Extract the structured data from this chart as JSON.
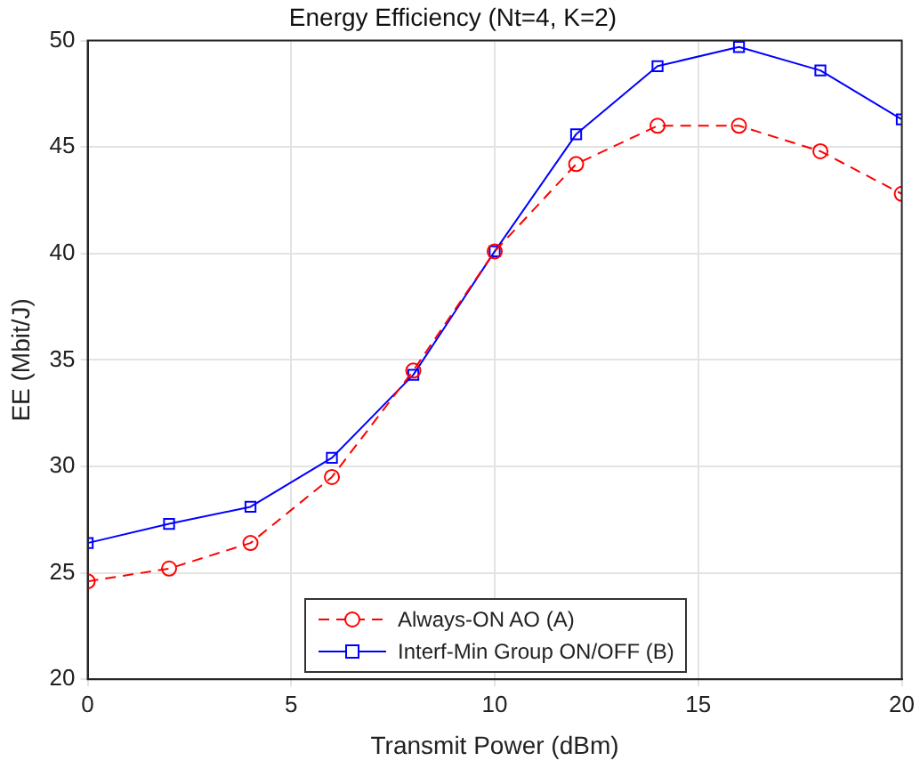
{
  "chart_data": {
    "type": "line",
    "title": "Energy Efficiency (Nt=4, K=2)",
    "xlabel": "Transmit Power (dBm)",
    "ylabel": "EE (Mbit/J)",
    "x": [
      0,
      2,
      4,
      6,
      8,
      10,
      12,
      14,
      16,
      18,
      20
    ],
    "series": [
      {
        "name": "Always-ON AO (A)",
        "color": "#ff0000",
        "marker": "circle",
        "line_style": "dashed",
        "values": [
          24.6,
          25.2,
          26.4,
          29.5,
          34.5,
          40.1,
          44.2,
          46.0,
          46.0,
          44.8,
          42.8
        ]
      },
      {
        "name": "Interf-Min Group ON/OFF (B)",
        "color": "#0000ff",
        "marker": "square",
        "line_style": "solid",
        "values": [
          26.4,
          27.3,
          28.1,
          30.4,
          34.3,
          40.1,
          45.6,
          48.8,
          49.7,
          48.6,
          46.3
        ]
      }
    ],
    "xlim": [
      0,
      20
    ],
    "xticks": [
      0,
      5,
      10,
      15,
      20
    ],
    "ylim": [
      20,
      50
    ],
    "yticks": [
      20,
      25,
      30,
      35,
      40,
      45,
      50
    ],
    "grid": true,
    "legend": "bottom"
  }
}
